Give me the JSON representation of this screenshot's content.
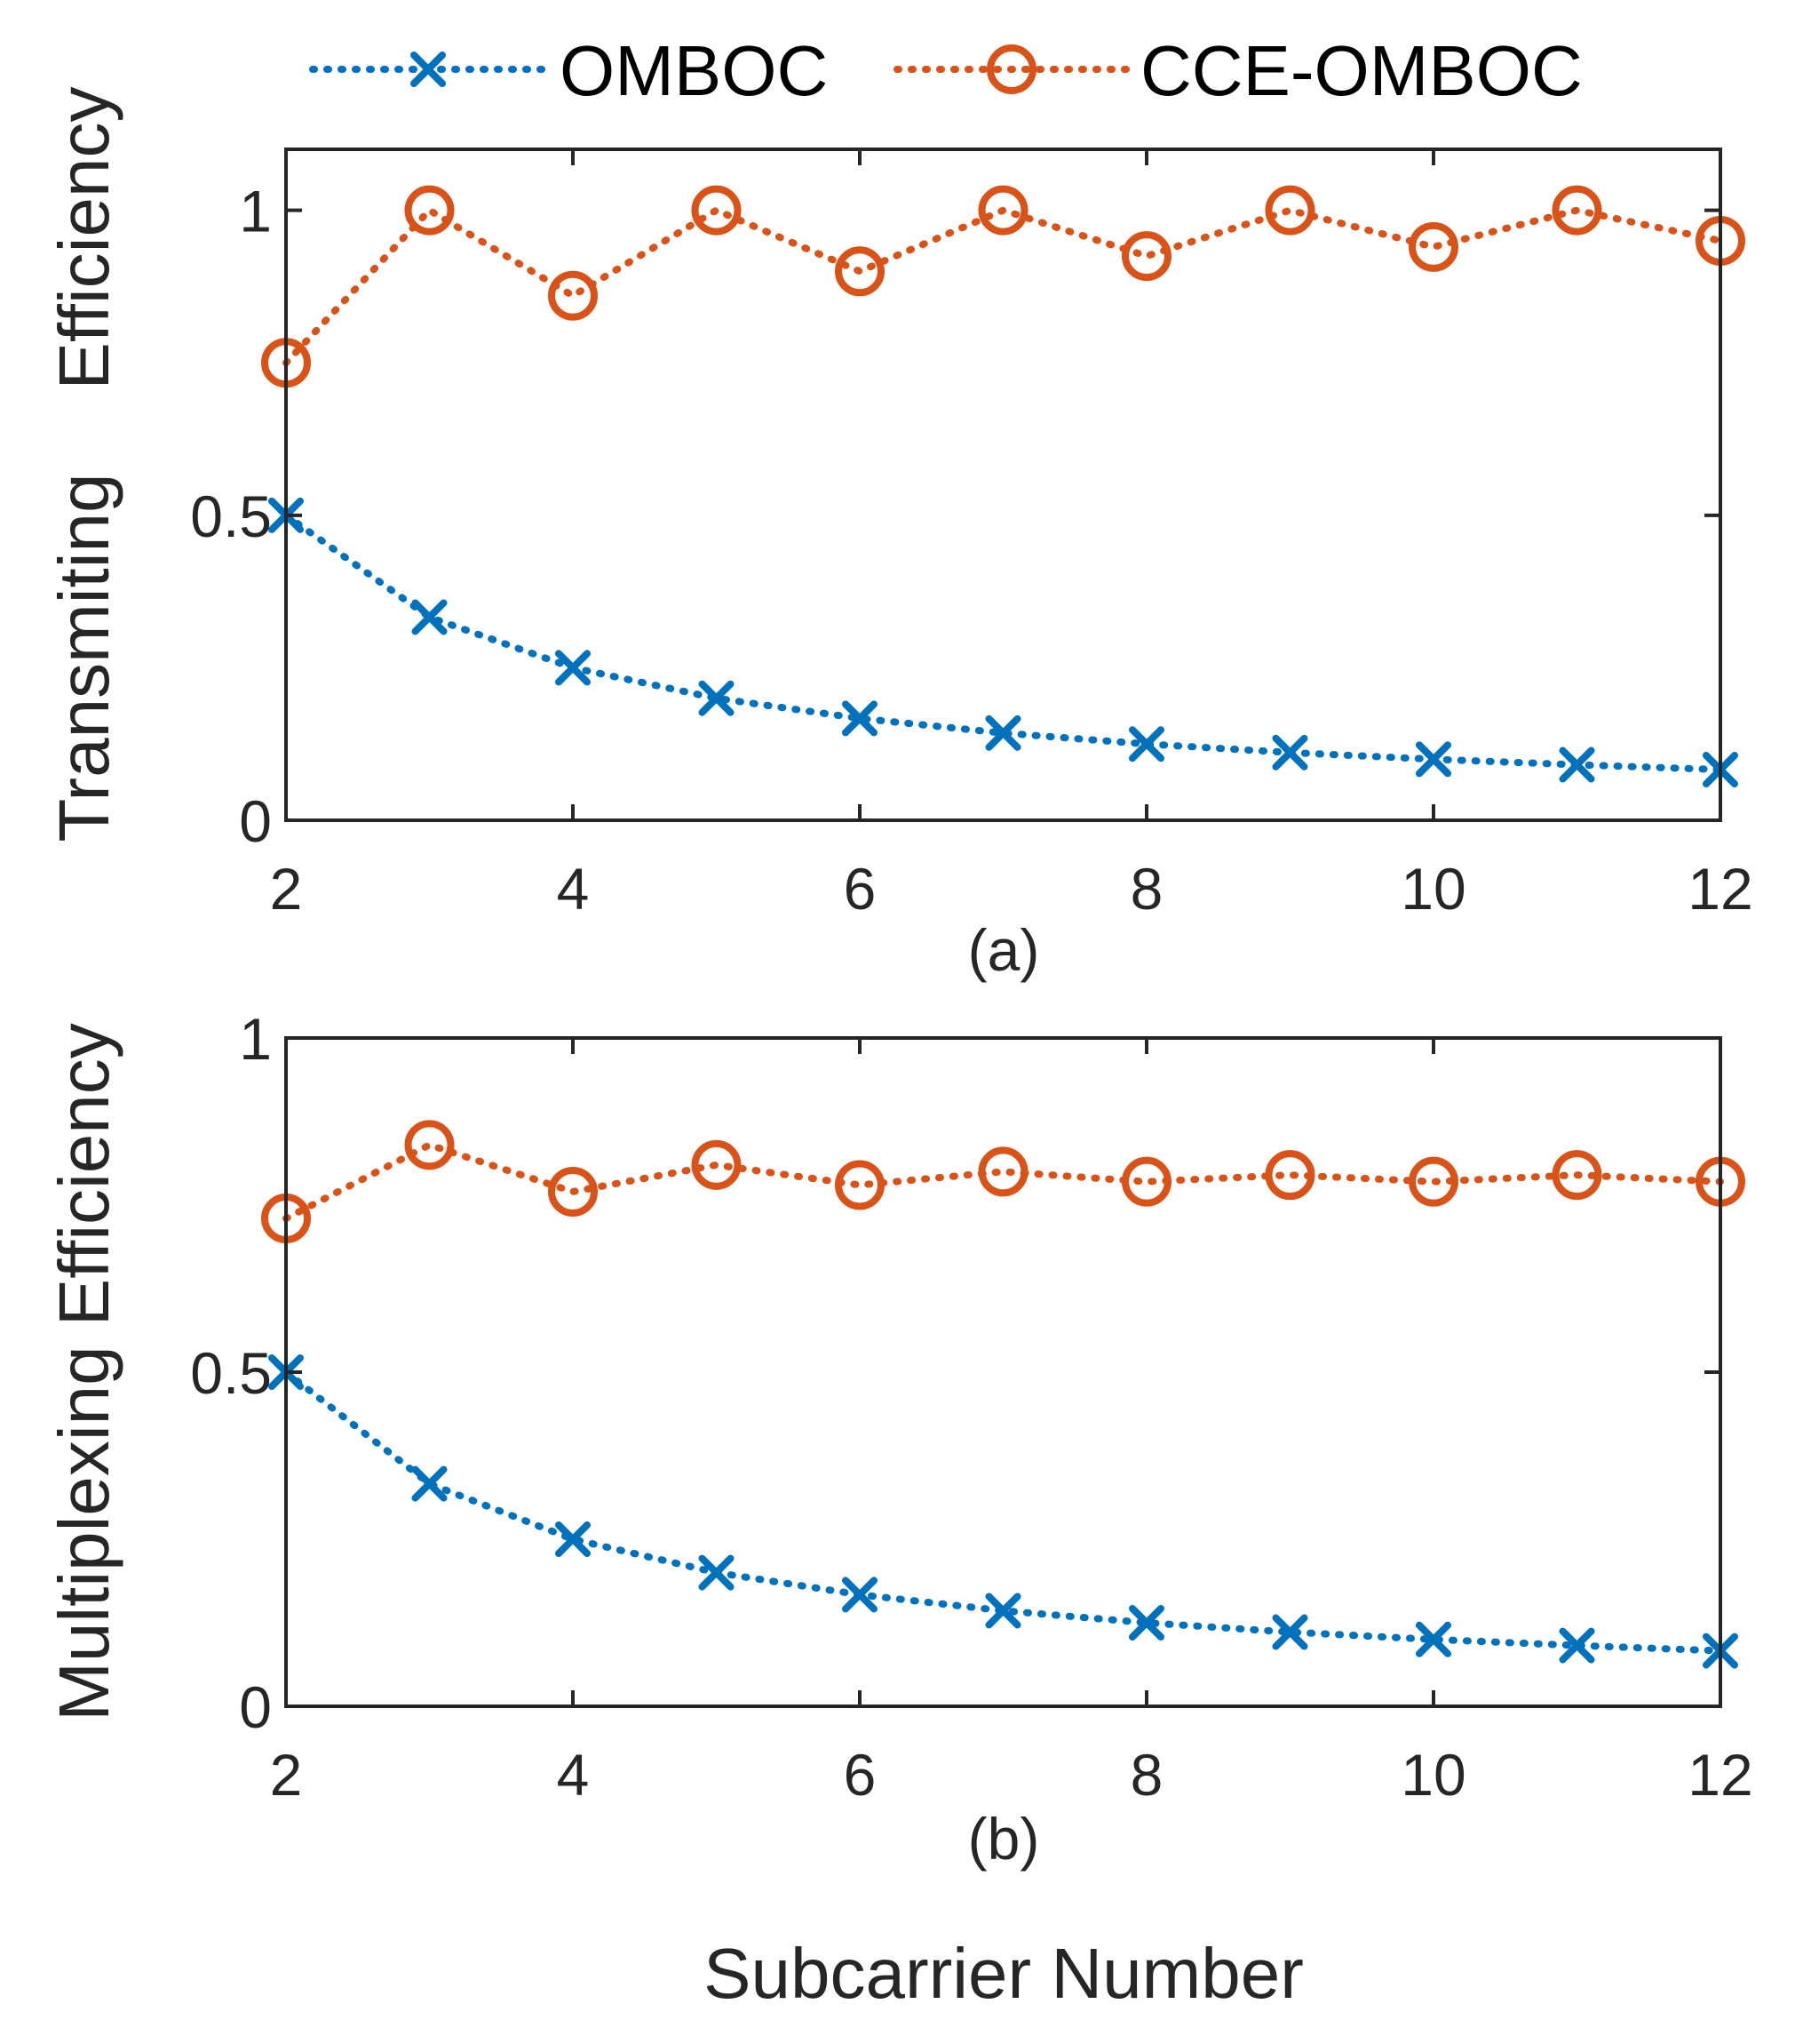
{
  "legend": {
    "location": "top-center",
    "entries": [
      {
        "label": "OMBOC",
        "color": "#0072BD",
        "marker": "x-marker-icon"
      },
      {
        "label": "CCE-OMBOC",
        "color": "#D95319",
        "marker": "circle-marker-icon"
      }
    ]
  },
  "xlabel": "Subcarrier Number",
  "chart_data": [
    {
      "type": "line",
      "caption": "(a)",
      "ylabel_words": [
        "Transmiting",
        "Efficiency"
      ],
      "x": [
        2,
        3,
        4,
        5,
        6,
        7,
        8,
        9,
        10,
        11,
        12
      ],
      "xlim": [
        2,
        12
      ],
      "ylim": [
        0,
        1.1
      ],
      "xticks": [
        "2",
        "4",
        "6",
        "8",
        "10",
        "12"
      ],
      "yticks": [
        "0",
        "0.5",
        "1"
      ],
      "grid": false,
      "series": [
        {
          "name": "OMBOC",
          "color": "#0072BD",
          "marker": "x",
          "line": "dotted",
          "values": [
            0.5,
            0.333,
            0.25,
            0.2,
            0.167,
            0.143,
            0.125,
            0.111,
            0.1,
            0.091,
            0.083
          ]
        },
        {
          "name": "CCE-OMBOC",
          "color": "#D95319",
          "marker": "o",
          "line": "dotted",
          "values": [
            0.75,
            1.0,
            0.86,
            1.0,
            0.9,
            1.0,
            0.925,
            1.0,
            0.94,
            1.0,
            0.95
          ]
        }
      ]
    },
    {
      "type": "line",
      "caption": "(b)",
      "ylabel": "Multiplexing Efficiency",
      "x": [
        2,
        3,
        4,
        5,
        6,
        7,
        8,
        9,
        10,
        11,
        12
      ],
      "xlim": [
        2,
        12
      ],
      "ylim": [
        0,
        1
      ],
      "xticks": [
        "2",
        "4",
        "6",
        "8",
        "10",
        "12"
      ],
      "yticks": [
        "0",
        "0.5",
        "1"
      ],
      "grid": false,
      "series": [
        {
          "name": "OMBOC",
          "color": "#0072BD",
          "marker": "x",
          "line": "dotted",
          "values": [
            0.5,
            0.333,
            0.25,
            0.2,
            0.167,
            0.143,
            0.125,
            0.111,
            0.1,
            0.091,
            0.083
          ]
        },
        {
          "name": "CCE-OMBOC",
          "color": "#D95319",
          "marker": "o",
          "line": "dotted",
          "values": [
            0.73,
            0.84,
            0.77,
            0.81,
            0.78,
            0.8,
            0.785,
            0.795,
            0.785,
            0.795,
            0.785
          ]
        }
      ]
    }
  ]
}
